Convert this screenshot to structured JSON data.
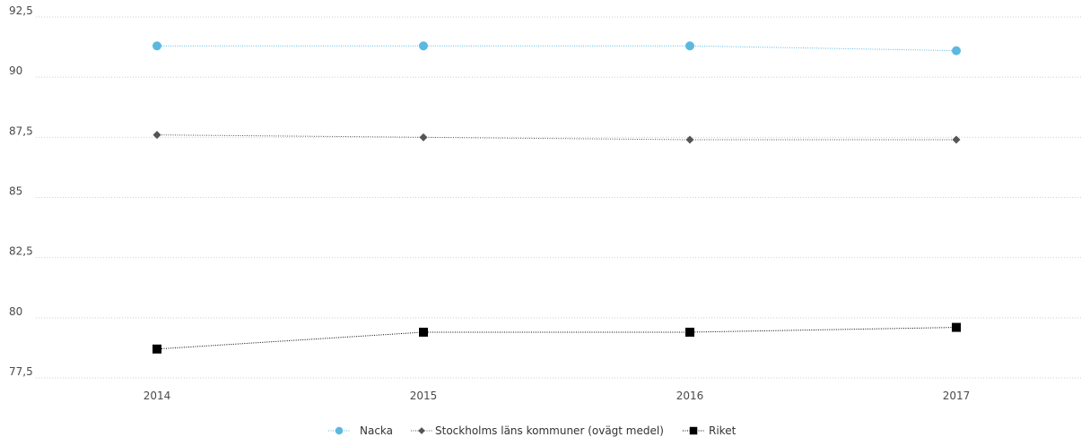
{
  "chart_data": {
    "type": "line",
    "title": "",
    "xlabel": "",
    "ylabel": "",
    "categories": [
      "2014",
      "2015",
      "2016",
      "2017"
    ],
    "ylim": [
      77.5,
      92.5
    ],
    "yticks": [
      "77,5",
      "80",
      "82,5",
      "85",
      "87,5",
      "90",
      "92,5"
    ],
    "ytick_values": [
      77.5,
      80,
      82.5,
      85,
      87.5,
      90,
      92.5
    ],
    "grid": true,
    "legend_position": "bottom-center",
    "series": [
      {
        "name": "Nacka",
        "values": [
          91.3,
          91.3,
          91.3,
          91.1
        ],
        "color": "#5bb8e0",
        "marker": "circle",
        "line": "dotted"
      },
      {
        "name": "Stockholms läns kommuner (ovägt medel)",
        "values": [
          87.6,
          87.5,
          87.4,
          87.4
        ],
        "color": "#555555",
        "marker": "diamond",
        "line": "dotted"
      },
      {
        "name": "Riket",
        "values": [
          78.7,
          79.4,
          79.4,
          79.6
        ],
        "color": "#000000",
        "marker": "square",
        "line": "dotted"
      }
    ]
  }
}
